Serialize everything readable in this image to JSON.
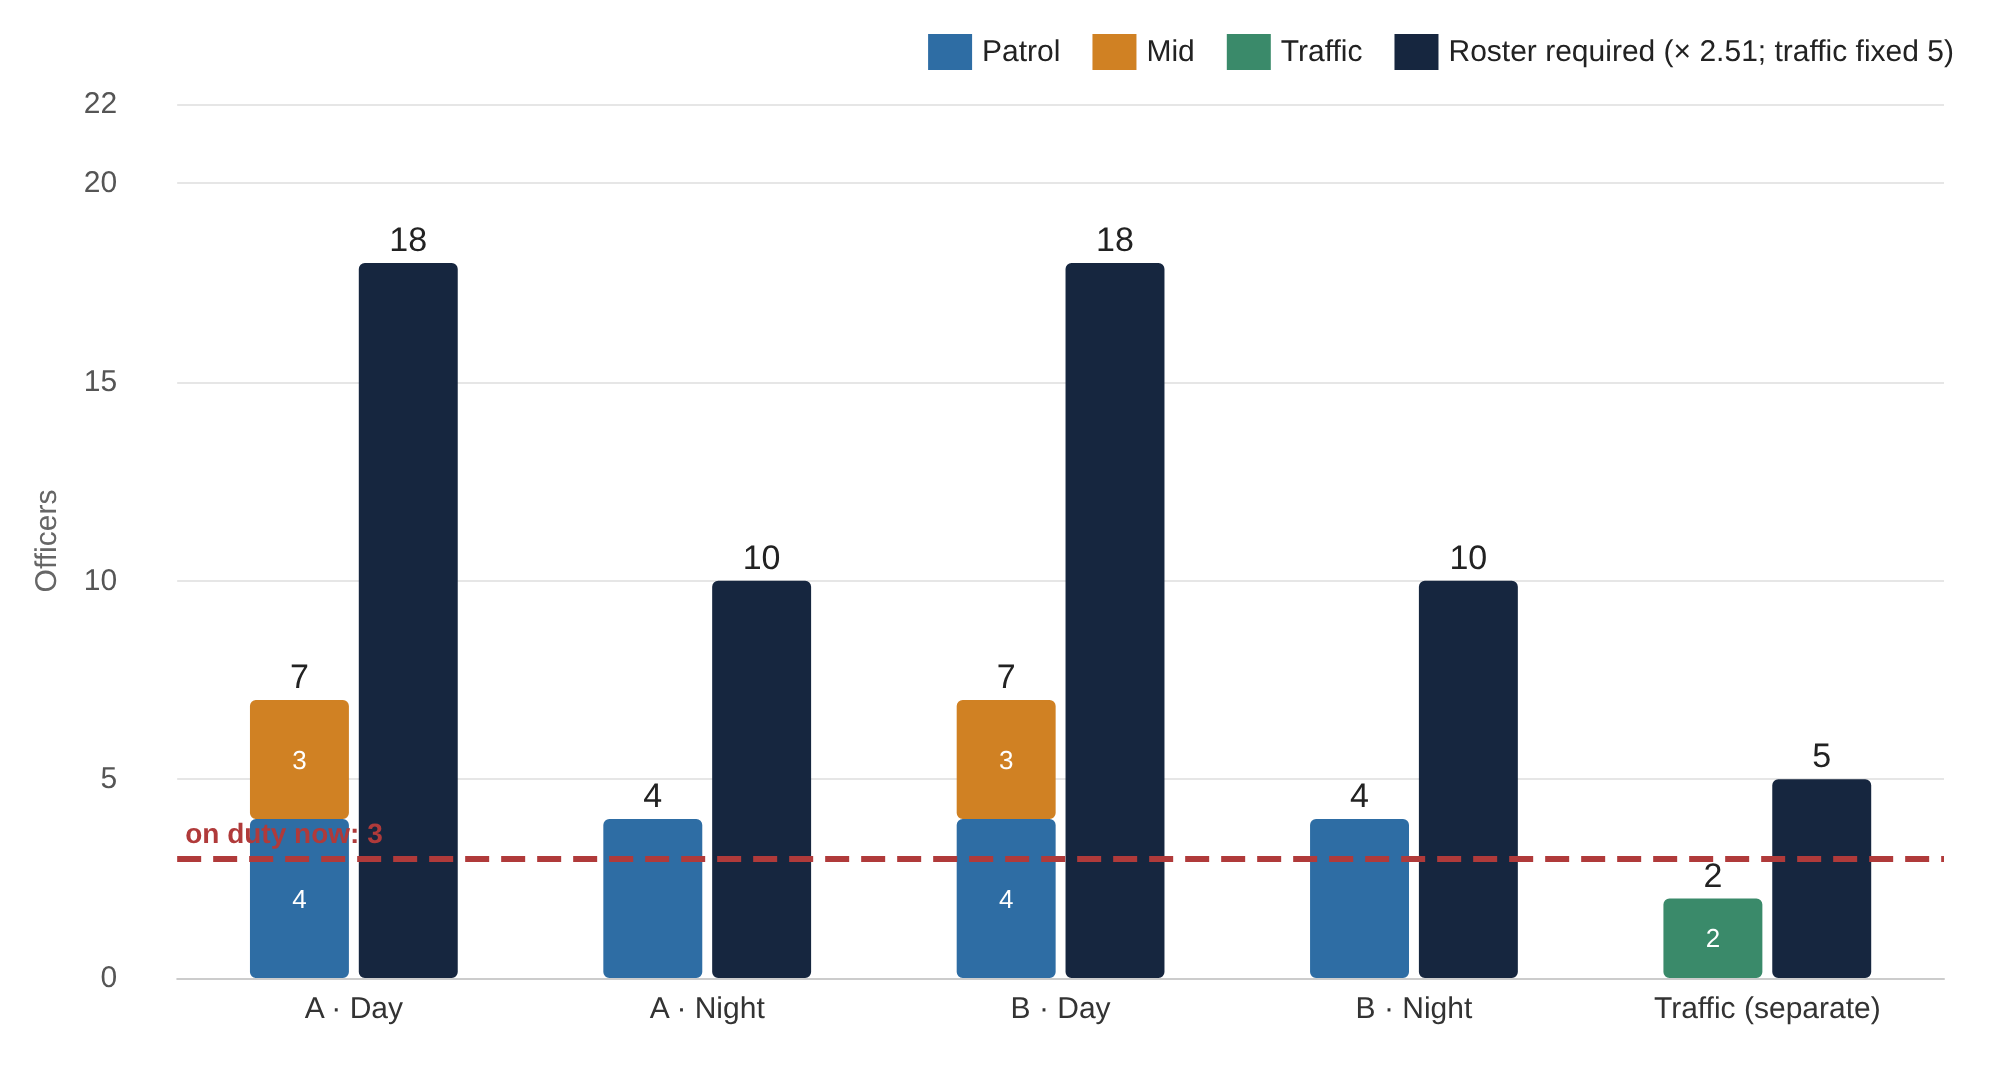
{
  "chart_data": {
    "type": "bar",
    "ylabel": "Officers",
    "categories": [
      "A · Day",
      "A · Night",
      "B · Day",
      "B · Night",
      "Traffic (separate)"
    ],
    "series": [
      {
        "name": "Patrol",
        "color": "#2e6da4",
        "values": [
          4,
          4,
          4,
          4,
          null
        ],
        "value_labels": [
          "4",
          null,
          "4",
          null,
          null
        ]
      },
      {
        "name": "Mid",
        "color": "#d08123",
        "base": [
          4,
          null,
          4,
          null,
          null
        ],
        "values": [
          3,
          null,
          3,
          null,
          null
        ],
        "value_labels": [
          "3",
          null,
          "3",
          null,
          null
        ]
      },
      {
        "name": "Traffic",
        "color": "#3a8a6a",
        "values": [
          null,
          null,
          null,
          null,
          2
        ],
        "value_labels": [
          null,
          null,
          null,
          null,
          "2"
        ]
      },
      {
        "name": "Roster required (× 2.51; traffic fixed 5)",
        "color": "#16263f",
        "values": [
          18,
          10,
          18,
          10,
          5
        ],
        "value_labels": [
          "18",
          "10",
          "18",
          "10",
          "5"
        ]
      }
    ],
    "annotations": [
      {
        "text": "7",
        "x": "A · Day",
        "y": 7
      },
      {
        "text": "4",
        "x": "A · Night",
        "y": 4
      },
      {
        "text": "7",
        "x": "B · Day",
        "y": 7
      },
      {
        "text": "4",
        "x": "B · Night",
        "y": 4
      },
      {
        "text": "2",
        "x": "Traffic (separate)",
        "y": 2
      }
    ],
    "ylim": [
      0,
      22
    ],
    "yticks": [
      0,
      5,
      10,
      15,
      20,
      22
    ],
    "grid": "y",
    "legend": "top right",
    "ref_lines": [
      {
        "axis": "y",
        "value": 3,
        "label": "on duty now: 3",
        "color": "#b03a3a",
        "line_style": "dashed"
      }
    ]
  }
}
